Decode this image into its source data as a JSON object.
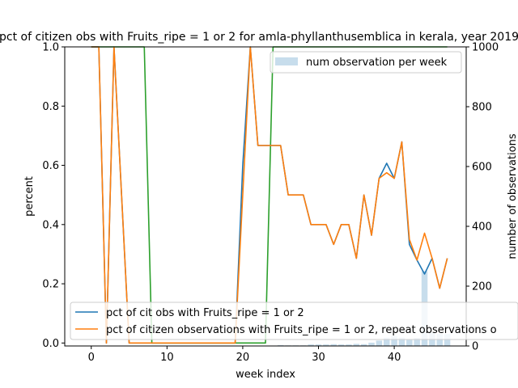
{
  "chart_data": {
    "type": "line",
    "title": "pct of citizen obs with Fruits_ripe = 1 or 2 for amla-phyllanthusemblica in kerala, year 2019",
    "xlabel": "week index",
    "ylabel_left": "percent",
    "ylabel_right": "number of observations",
    "xlim": [
      -3.5,
      49.5
    ],
    "ylim_left": [
      -0.01,
      1.0
    ],
    "ylim_right": [
      0,
      1000
    ],
    "xticks": [
      0,
      10,
      20,
      30,
      40
    ],
    "yticks_left": [
      0.0,
      0.2,
      0.4,
      0.6,
      0.8,
      1.0
    ],
    "yticks_right": [
      0,
      200,
      400,
      600,
      800,
      1000
    ],
    "grid": false,
    "series": [
      {
        "name": "pct of cit obs with Fruits_ripe = 1 or 2",
        "color": "#1f77b4",
        "points": [
          [
            0,
            1.0
          ],
          [
            1,
            1.0
          ],
          [
            2,
            0.0
          ],
          [
            3,
            1.0
          ],
          [
            4,
            0.5
          ],
          [
            5,
            0.0
          ],
          [
            6,
            0.0
          ],
          [
            7,
            0.0
          ],
          [
            8,
            0.0
          ],
          [
            9,
            0.0
          ],
          [
            10,
            0.0
          ],
          [
            11,
            0.0
          ],
          [
            12,
            0.0
          ],
          [
            13,
            0.0
          ],
          [
            14,
            0.0
          ],
          [
            15,
            0.0
          ],
          [
            16,
            0.0
          ],
          [
            17,
            0.0
          ],
          [
            18,
            0.0
          ],
          [
            19,
            0.0
          ],
          [
            20,
            0.6
          ],
          [
            21,
            1.0
          ],
          [
            22,
            0.667
          ],
          [
            23,
            0.667
          ],
          [
            24,
            0.667
          ],
          [
            25,
            0.667
          ],
          [
            26,
            0.5
          ],
          [
            27,
            0.5
          ],
          [
            28,
            0.5
          ],
          [
            29,
            0.4
          ],
          [
            30,
            0.4
          ],
          [
            31,
            0.4
          ],
          [
            32,
            0.333
          ],
          [
            33,
            0.4
          ],
          [
            34,
            0.4
          ],
          [
            35,
            0.286
          ],
          [
            36,
            0.5
          ],
          [
            37,
            0.364
          ],
          [
            38,
            0.556
          ],
          [
            39,
            0.607
          ],
          [
            40,
            0.556
          ],
          [
            41,
            0.679
          ],
          [
            42,
            0.333
          ],
          [
            43,
            0.28
          ],
          [
            44,
            0.233
          ],
          [
            45,
            0.286
          ],
          [
            46,
            0.185
          ],
          [
            47,
            0.286
          ]
        ]
      },
      {
        "name": "pct of citizen observations with Fruits_ripe = 1 or 2, repeat observations o",
        "color": "#ff7f0e",
        "points": [
          [
            0,
            1.0
          ],
          [
            1,
            1.0
          ],
          [
            2,
            0.0
          ],
          [
            3,
            1.0
          ],
          [
            4,
            0.5
          ],
          [
            5,
            0.0
          ],
          [
            6,
            0.0
          ],
          [
            7,
            0.0
          ],
          [
            8,
            0.0
          ],
          [
            9,
            0.0
          ],
          [
            10,
            0.0
          ],
          [
            11,
            0.0
          ],
          [
            12,
            0.0
          ],
          [
            13,
            0.0
          ],
          [
            14,
            0.0
          ],
          [
            15,
            0.0
          ],
          [
            16,
            0.0
          ],
          [
            17,
            0.0
          ],
          [
            18,
            0.0
          ],
          [
            19,
            0.0
          ],
          [
            20,
            0.5
          ],
          [
            21,
            1.0
          ],
          [
            22,
            0.667
          ],
          [
            23,
            0.667
          ],
          [
            24,
            0.667
          ],
          [
            25,
            0.667
          ],
          [
            26,
            0.5
          ],
          [
            27,
            0.5
          ],
          [
            28,
            0.5
          ],
          [
            29,
            0.4
          ],
          [
            30,
            0.4
          ],
          [
            31,
            0.4
          ],
          [
            32,
            0.333
          ],
          [
            33,
            0.4
          ],
          [
            34,
            0.4
          ],
          [
            35,
            0.286
          ],
          [
            36,
            0.5
          ],
          [
            37,
            0.364
          ],
          [
            38,
            0.556
          ],
          [
            39,
            0.575
          ],
          [
            40,
            0.556
          ],
          [
            41,
            0.679
          ],
          [
            42,
            0.35
          ],
          [
            43,
            0.28
          ],
          [
            44,
            0.371
          ],
          [
            45,
            0.286
          ],
          [
            46,
            0.185
          ],
          [
            47,
            0.286
          ]
        ]
      },
      {
        "name": "",
        "color": "#2ca02c",
        "points": [
          [
            0,
            1.0
          ],
          [
            7,
            1.0
          ],
          [
            8,
            0.0
          ],
          [
            23,
            0.0
          ],
          [
            24,
            1.0
          ],
          [
            47,
            1.0
          ]
        ]
      }
    ],
    "bars": {
      "name": "num observation per week",
      "color": "#1f77b4",
      "opacity": 0.25,
      "axis": "right",
      "x": [
        25,
        26,
        27,
        28,
        29,
        30,
        31,
        32,
        33,
        34,
        35,
        36,
        37,
        38,
        39,
        40,
        41,
        42,
        43,
        44,
        45,
        46,
        47
      ],
      "values": [
        3,
        2,
        2,
        2,
        5,
        5,
        5,
        6,
        5,
        5,
        7,
        6,
        11,
        18,
        28,
        33,
        28,
        20,
        27,
        250,
        45,
        40,
        40
      ]
    },
    "legend_bars_placement": "top-right",
    "legend_lines_placement": "bottom-right"
  }
}
